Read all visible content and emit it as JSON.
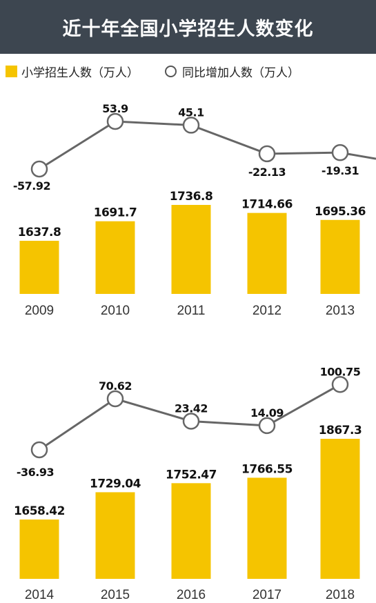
{
  "title": "近十年全国小学招生人数变化",
  "legend": {
    "bars": "小学招生人数（万人）",
    "line": "同比增加人数（万人）"
  },
  "colors": {
    "bar": "#f5c400",
    "line": "#666666",
    "header": "#3d4650"
  },
  "chart_data": [
    {
      "type": "bar",
      "categories": [
        "2009",
        "2010",
        "2011",
        "2012",
        "2013"
      ],
      "series": [
        {
          "name": "小学招生人数（万人）",
          "values": [
            1637.8,
            1691.7,
            1736.8,
            1714.66,
            1695.36
          ]
        },
        {
          "name": "同比增加人数（万人）",
          "type": "line",
          "values": [
            -57.92,
            53.9,
            45.1,
            -22.13,
            -19.31
          ]
        }
      ]
    },
    {
      "type": "bar",
      "categories": [
        "2014",
        "2015",
        "2016",
        "2017",
        "2018"
      ],
      "series": [
        {
          "name": "小学招生人数（万人）",
          "values": [
            1658.42,
            1729.04,
            1752.47,
            1766.55,
            1867.3
          ]
        },
        {
          "name": "同比增加人数（万人）",
          "type": "line",
          "values": [
            -36.93,
            70.62,
            23.42,
            14.09,
            100.75
          ]
        }
      ]
    }
  ]
}
